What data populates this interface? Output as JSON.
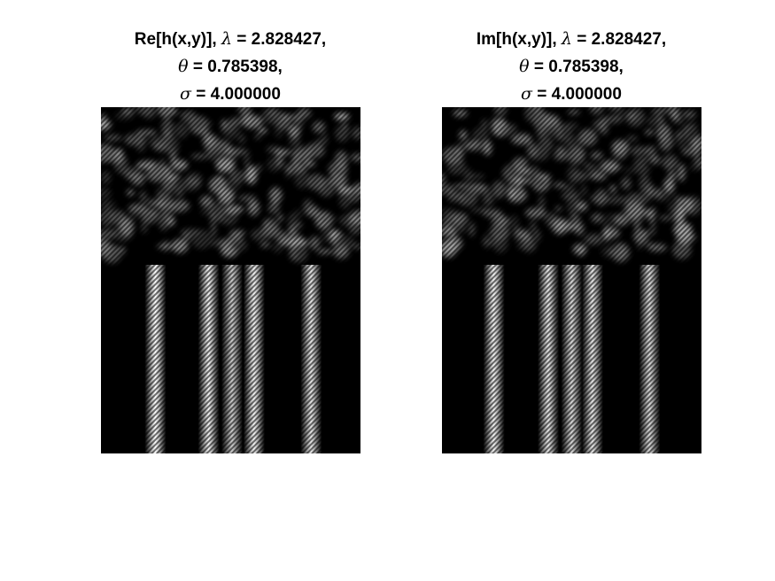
{
  "panels": [
    {
      "id": "left",
      "title_line1_prefix": "Re[h(x,y)], ",
      "title_line1_symbol": "λ",
      "title_line1_suffix": " = 2.828427,",
      "title_line2_symbol": "θ",
      "title_line2_suffix": " = 0.785398,",
      "title_line3_symbol": "σ",
      "title_line3_suffix": " = 4.000000",
      "stripe_centers": [
        0.21,
        0.415,
        0.505,
        0.59,
        0.81
      ],
      "stripe_intensity": [
        1.0,
        0.95,
        0.8,
        0.95,
        0.9
      ]
    },
    {
      "id": "right",
      "title_line1_prefix": "Im[h(x,y)], ",
      "title_line1_symbol": "λ",
      "title_line1_suffix": " = 2.828427,",
      "title_line2_symbol": "θ",
      "title_line2_suffix": " = 0.785398,",
      "title_line3_symbol": "σ",
      "title_line3_suffix": " = 4.000000",
      "stripe_centers": [
        0.2,
        0.41,
        0.5,
        0.58,
        0.8
      ],
      "stripe_intensity": [
        0.95,
        0.9,
        0.85,
        0.9,
        0.85
      ]
    }
  ],
  "colors": {
    "background": "#ffffff",
    "image_base": "#000000",
    "highlight": "#ffffff"
  },
  "upper_region_fraction": 0.44
}
